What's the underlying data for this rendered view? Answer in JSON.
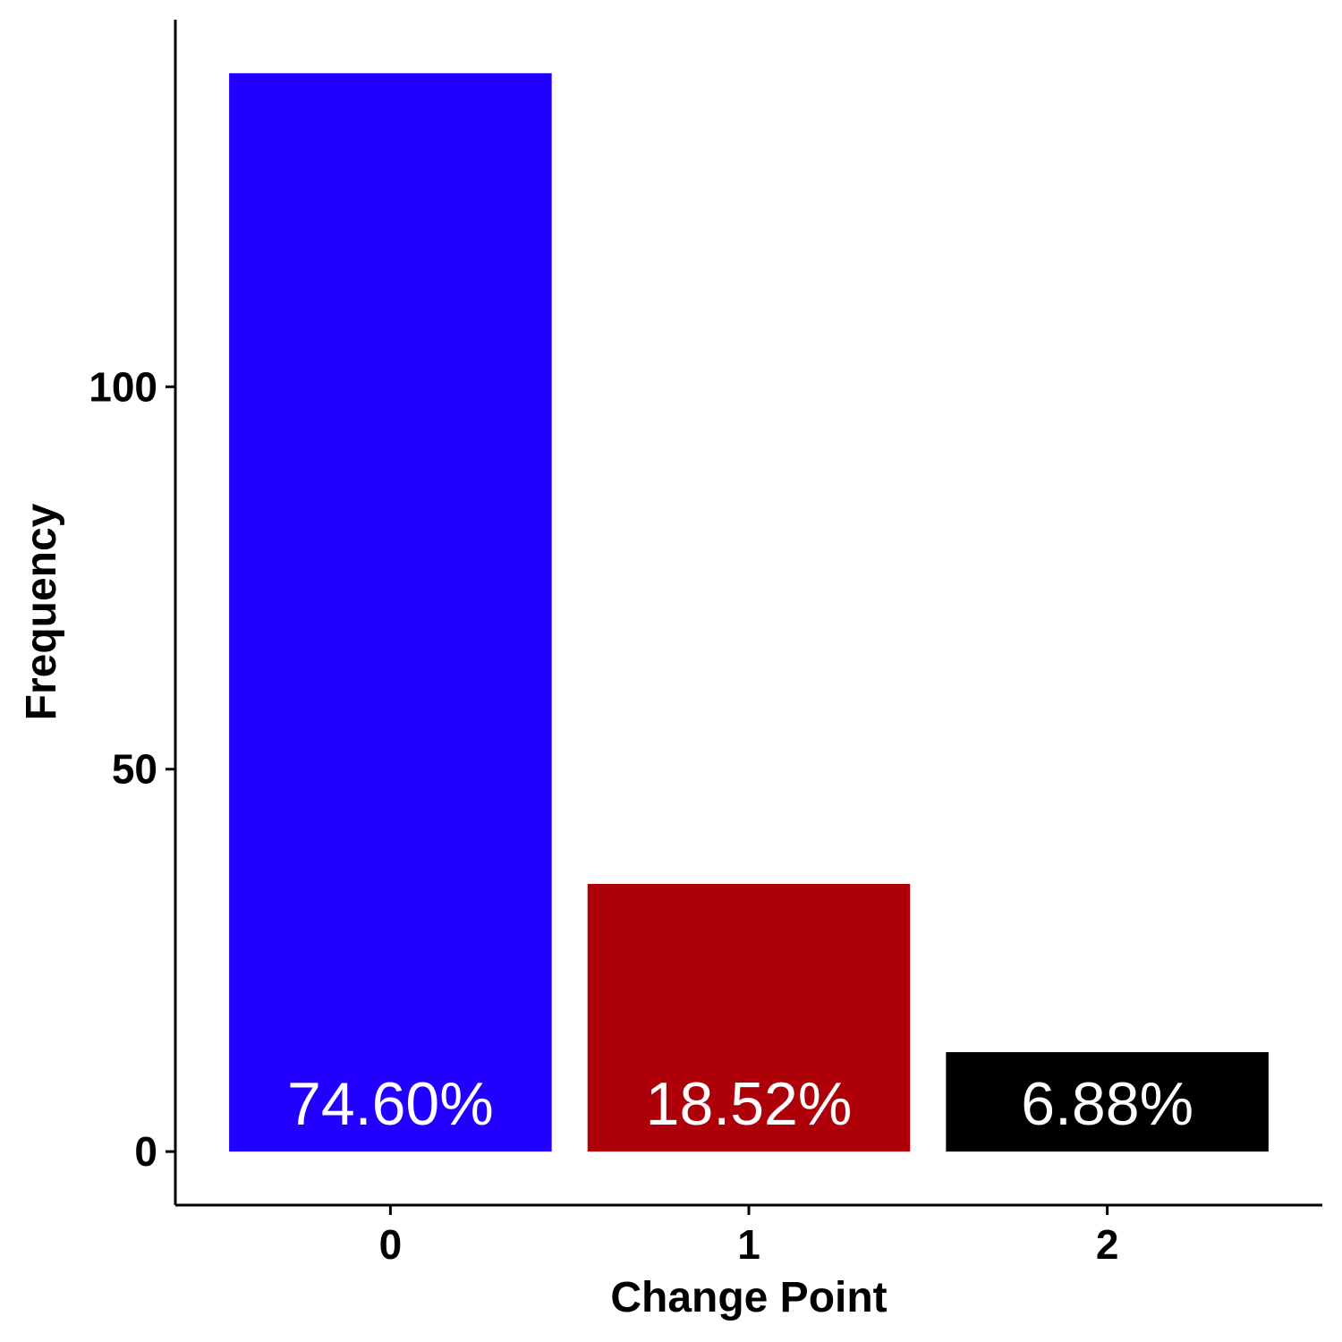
{
  "chart_data": {
    "type": "bar",
    "title": "",
    "xlabel": "Change Point",
    "ylabel": "Frequency",
    "categories": [
      "0",
      "1",
      "2"
    ],
    "values": [
      141,
      35,
      13
    ],
    "bar_labels": [
      "74.60%",
      "18.52%",
      "6.88%"
    ],
    "colors": [
      "#2200FF",
      "#AE0009",
      "#000000"
    ],
    "yticks": [
      0,
      50,
      100
    ],
    "ylim": [
      -7,
      148
    ],
    "grid": false,
    "legend": "none"
  }
}
